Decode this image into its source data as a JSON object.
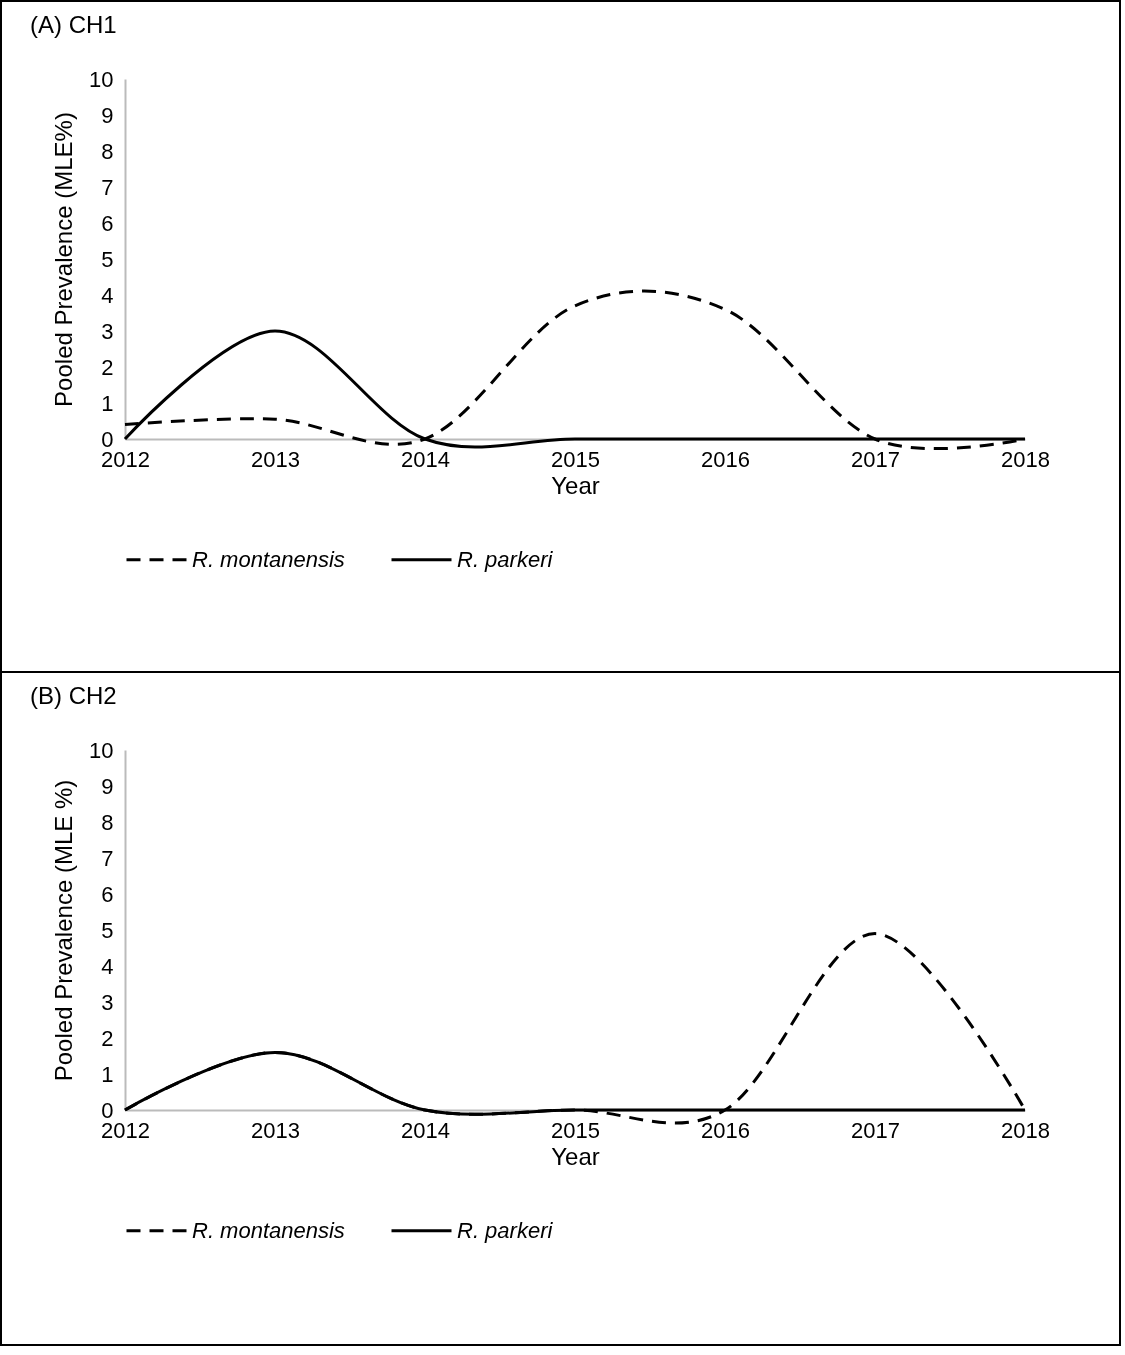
{
  "chart_data": [
    {
      "type": "line",
      "title": "(A) CH1",
      "xlabel": "Year",
      "ylabel": "Pooled Prevalence (MLE%)",
      "x": [
        2012,
        2013,
        2014,
        2015,
        2016,
        2017,
        2018
      ],
      "series": [
        {
          "name": "R. montanensis",
          "color": "#000000",
          "line_style": "dashed",
          "values": [
            0.4,
            0.55,
            0,
            3.7,
            3.6,
            0,
            0
          ]
        },
        {
          "name": "R. parkeri",
          "color": "#000000",
          "line_style": "solid",
          "values": [
            0,
            3,
            0,
            0,
            0,
            0,
            0
          ]
        }
      ],
      "xlim": [
        2012,
        2018
      ],
      "xticks": [
        2012,
        2013,
        2014,
        2015,
        2016,
        2017,
        2018
      ],
      "ylim": [
        0,
        10
      ],
      "yticks": [
        0,
        1,
        2,
        3,
        4,
        5,
        6,
        7,
        8,
        9,
        10
      ],
      "grid": false,
      "legend": "bottom"
    },
    {
      "type": "line",
      "title": "(B) CH2",
      "xlabel": "Year",
      "ylabel": "Pooled Prevalence (MLE %)",
      "x": [
        2012,
        2013,
        2014,
        2015,
        2016,
        2017,
        2018
      ],
      "series": [
        {
          "name": "R. montanensis",
          "color": "#000000",
          "line_style": "dashed",
          "values": [
            0,
            1.6,
            0,
            0,
            0,
            4.9,
            0
          ]
        },
        {
          "name": "R. parkeri",
          "color": "#000000",
          "line_style": "solid",
          "values": [
            0,
            1.6,
            0,
            0,
            0,
            0,
            0
          ]
        }
      ],
      "xlim": [
        2012,
        2018
      ],
      "xticks": [
        2012,
        2013,
        2014,
        2015,
        2016,
        2017,
        2018
      ],
      "ylim": [
        0,
        10
      ],
      "yticks": [
        0,
        1,
        2,
        3,
        4,
        5,
        6,
        7,
        8,
        9,
        10
      ],
      "grid": false,
      "legend": "bottom"
    }
  ]
}
